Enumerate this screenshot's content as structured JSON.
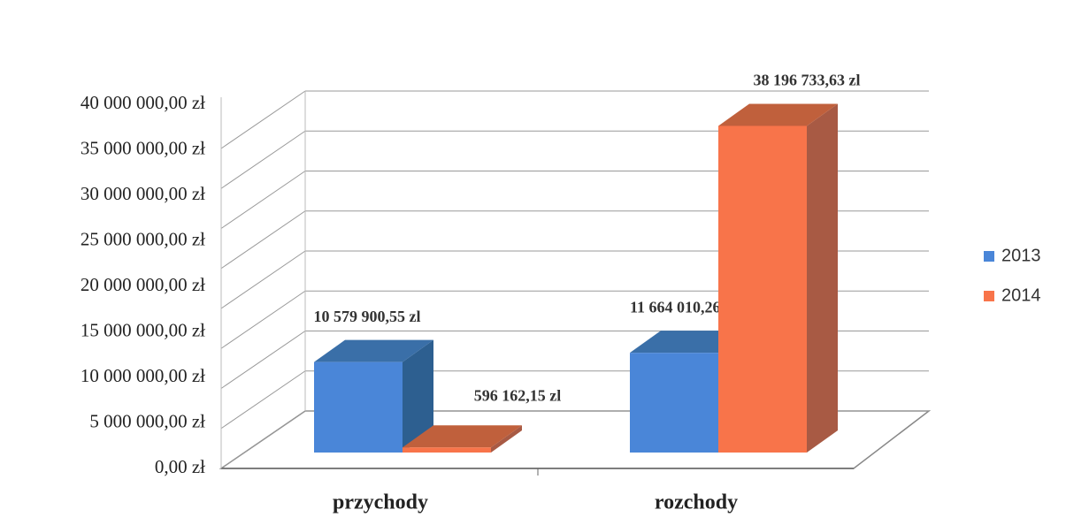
{
  "chart_data": {
    "type": "bar3d",
    "categories": [
      "przychody",
      "rozchody"
    ],
    "series": [
      {
        "name": "2013",
        "color": "#4a86d8",
        "values": [
          10579900.55,
          11664010.26
        ],
        "value_labels": [
          "10 579 900,55 zl",
          "11 664 010,26 zl"
        ]
      },
      {
        "name": "2014",
        "color": "#f8744a",
        "values": [
          596162.15,
          38196733.63
        ],
        "value_labels": [
          "596 162,15 zl",
          "38 196 733,63 zl"
        ]
      }
    ],
    "ylim": [
      0,
      40000000
    ],
    "yticks": [
      {
        "value": 0,
        "label": "0,00 zł"
      },
      {
        "value": 5000000,
        "label": "5 000 000,00 zł"
      },
      {
        "value": 10000000,
        "label": "10 000 000,00 zł"
      },
      {
        "value": 15000000,
        "label": "15 000 000,00 zł"
      },
      {
        "value": 20000000,
        "label": "20 000 000,00 zł"
      },
      {
        "value": 25000000,
        "label": "25 000 000,00 zł"
      },
      {
        "value": 30000000,
        "label": "30 000 000,00 zł"
      },
      {
        "value": 35000000,
        "label": "35 000 000,00 zł"
      },
      {
        "value": 40000000,
        "label": "40 000 000,00 zł"
      }
    ],
    "grid": true,
    "legend": "right"
  }
}
